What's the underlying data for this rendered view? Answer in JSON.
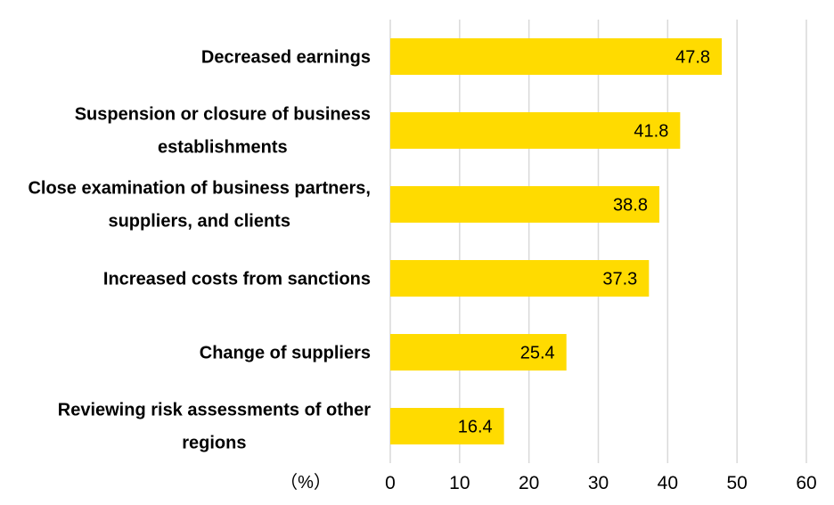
{
  "chart_data": {
    "type": "bar",
    "orientation": "horizontal",
    "categories": [
      [
        "Decreased earnings"
      ],
      [
        "Suspension or closure of business",
        "establishments"
      ],
      [
        "Close examination of business partners,",
        "suppliers, and clients"
      ],
      [
        "Increased costs from sanctions"
      ],
      [
        "Change of suppliers"
      ],
      [
        "Reviewing risk assessments of other",
        "regions"
      ]
    ],
    "values": [
      47.8,
      41.8,
      38.8,
      37.3,
      25.4,
      16.4
    ],
    "value_labels": [
      "47.8",
      "41.8",
      "38.8",
      "37.3",
      "25.4",
      "16.4"
    ],
    "xticks": [
      "0",
      "10",
      "20",
      "30",
      "40",
      "50",
      "60"
    ],
    "xlim": [
      0,
      60
    ],
    "unit_label": "（%）",
    "grid": "vertical",
    "legend": "none",
    "bar_color": "#FFDB00",
    "grid_color": "#D9D9D9"
  }
}
